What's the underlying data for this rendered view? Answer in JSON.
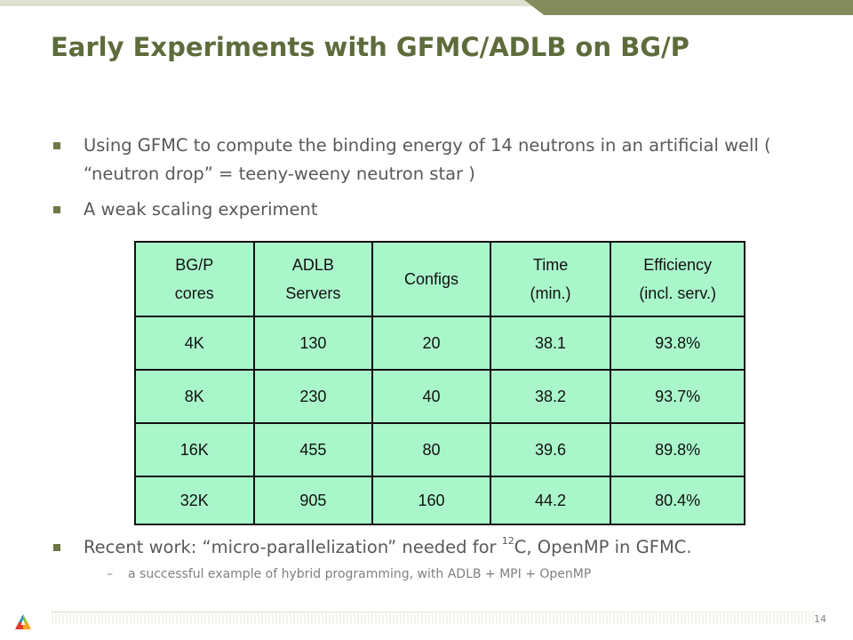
{
  "slide": {
    "title": "Early Experiments with GFMC/ADLB on BG/P",
    "bullets": [
      {
        "text": "Using GFMC to compute the binding energy of 14 neutrons in an artificial well ( “neutron drop” = teeny-weeny neutron star )"
      },
      {
        "text": "A weak scaling experiment"
      },
      {
        "text_before": "Recent work:  “micro-parallelization” needed for ",
        "sup": "12",
        "text_after": "C, OpenMP in GFMC."
      }
    ],
    "sub_bullet": {
      "dash": "–",
      "text": "a successful example of hybrid programming, with ADLB + MPI + OpenMP"
    },
    "page_number": "14"
  },
  "table": {
    "headers": [
      {
        "line1": "BG/P",
        "line2": "cores"
      },
      {
        "line1": "ADLB",
        "line2": "Servers"
      },
      {
        "line1": "Configs",
        "line2": ""
      },
      {
        "line1": "Time",
        "line2": "(min.)"
      },
      {
        "line1": "Efficiency",
        "line2": "(incl. serv.)"
      }
    ],
    "rows": [
      [
        "4K",
        "130",
        "20",
        "38.1",
        "93.8%"
      ],
      [
        "8K",
        "230",
        "40",
        "38.2",
        "93.7%"
      ],
      [
        "16K",
        "455",
        "80",
        "39.6",
        "89.8%"
      ],
      [
        "32K",
        "905",
        "160",
        "44.2",
        "80.4%"
      ]
    ]
  },
  "colors": {
    "title": "#5e6b3b",
    "accent": "#848b5c",
    "table_fill": "#aaf6cb",
    "body_text": "#595959"
  },
  "icons": {
    "logo": "argonne-logo-icon"
  }
}
